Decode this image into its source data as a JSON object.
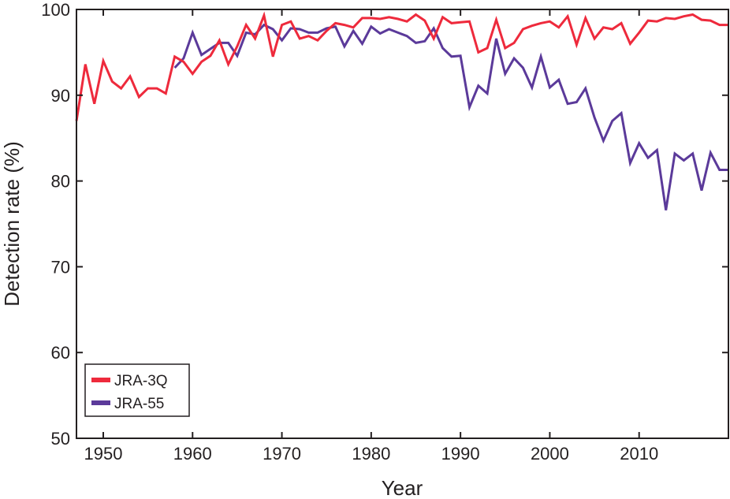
{
  "chart_data": {
    "type": "line",
    "title": "",
    "xlabel": "Year",
    "ylabel": "Detection rate (%)",
    "xlim": [
      1947,
      2020
    ],
    "ylim": [
      50,
      100
    ],
    "xticks": [
      1950,
      1960,
      1970,
      1980,
      1990,
      2000,
      2010
    ],
    "yticks": [
      50,
      60,
      70,
      80,
      90,
      100
    ],
    "grid": false,
    "legend_position": "bottom-left",
    "series": [
      {
        "name": "JRA-3Q",
        "color": "#ee2a3c",
        "x_start": 1947,
        "values": [
          87.0,
          93.6,
          89.0,
          94.0,
          91.6,
          90.8,
          92.2,
          89.8,
          90.8,
          90.8,
          90.2,
          94.5,
          93.9,
          92.5,
          93.9,
          94.6,
          96.4,
          93.6,
          95.7,
          98.2,
          96.6,
          99.3,
          94.5,
          98.2,
          98.6,
          96.6,
          96.9,
          96.4,
          97.5,
          98.4,
          98.2,
          97.9,
          99.0,
          99.0,
          98.9,
          99.1,
          98.9,
          98.6,
          99.4,
          98.7,
          96.6,
          99.1,
          98.4,
          98.5,
          98.6,
          95.0,
          95.5,
          98.8,
          95.5,
          96.1,
          97.7,
          98.1,
          98.4,
          98.6,
          97.9,
          99.2,
          95.9,
          99.0,
          96.6,
          97.9,
          97.7,
          98.4,
          96.0,
          97.3,
          98.7,
          98.6,
          99.0,
          98.9,
          99.2,
          99.4,
          98.8,
          98.7,
          98.2,
          98.2
        ]
      },
      {
        "name": "JRA-55",
        "color": "#5b3a9a",
        "x_start": 1958,
        "values": [
          93.2,
          94.3,
          97.3,
          94.7,
          95.4,
          96.1,
          96.1,
          94.6,
          97.3,
          97.1,
          98.2,
          97.7,
          96.4,
          97.8,
          97.7,
          97.3,
          97.3,
          97.8,
          98.0,
          95.7,
          97.5,
          96.0,
          98.0,
          97.2,
          97.7,
          97.3,
          96.9,
          96.1,
          96.3,
          97.8,
          95.5,
          94.5,
          94.6,
          88.6,
          91.1,
          90.2,
          96.6,
          92.5,
          94.3,
          93.2,
          90.9,
          94.5,
          90.9,
          91.8,
          89.0,
          89.2,
          90.8,
          87.4,
          84.7,
          87.0,
          87.9,
          82.1,
          84.4,
          82.7,
          83.6,
          76.6,
          83.2,
          82.4,
          83.2,
          78.9,
          83.3,
          81.3,
          81.3
        ]
      }
    ]
  }
}
